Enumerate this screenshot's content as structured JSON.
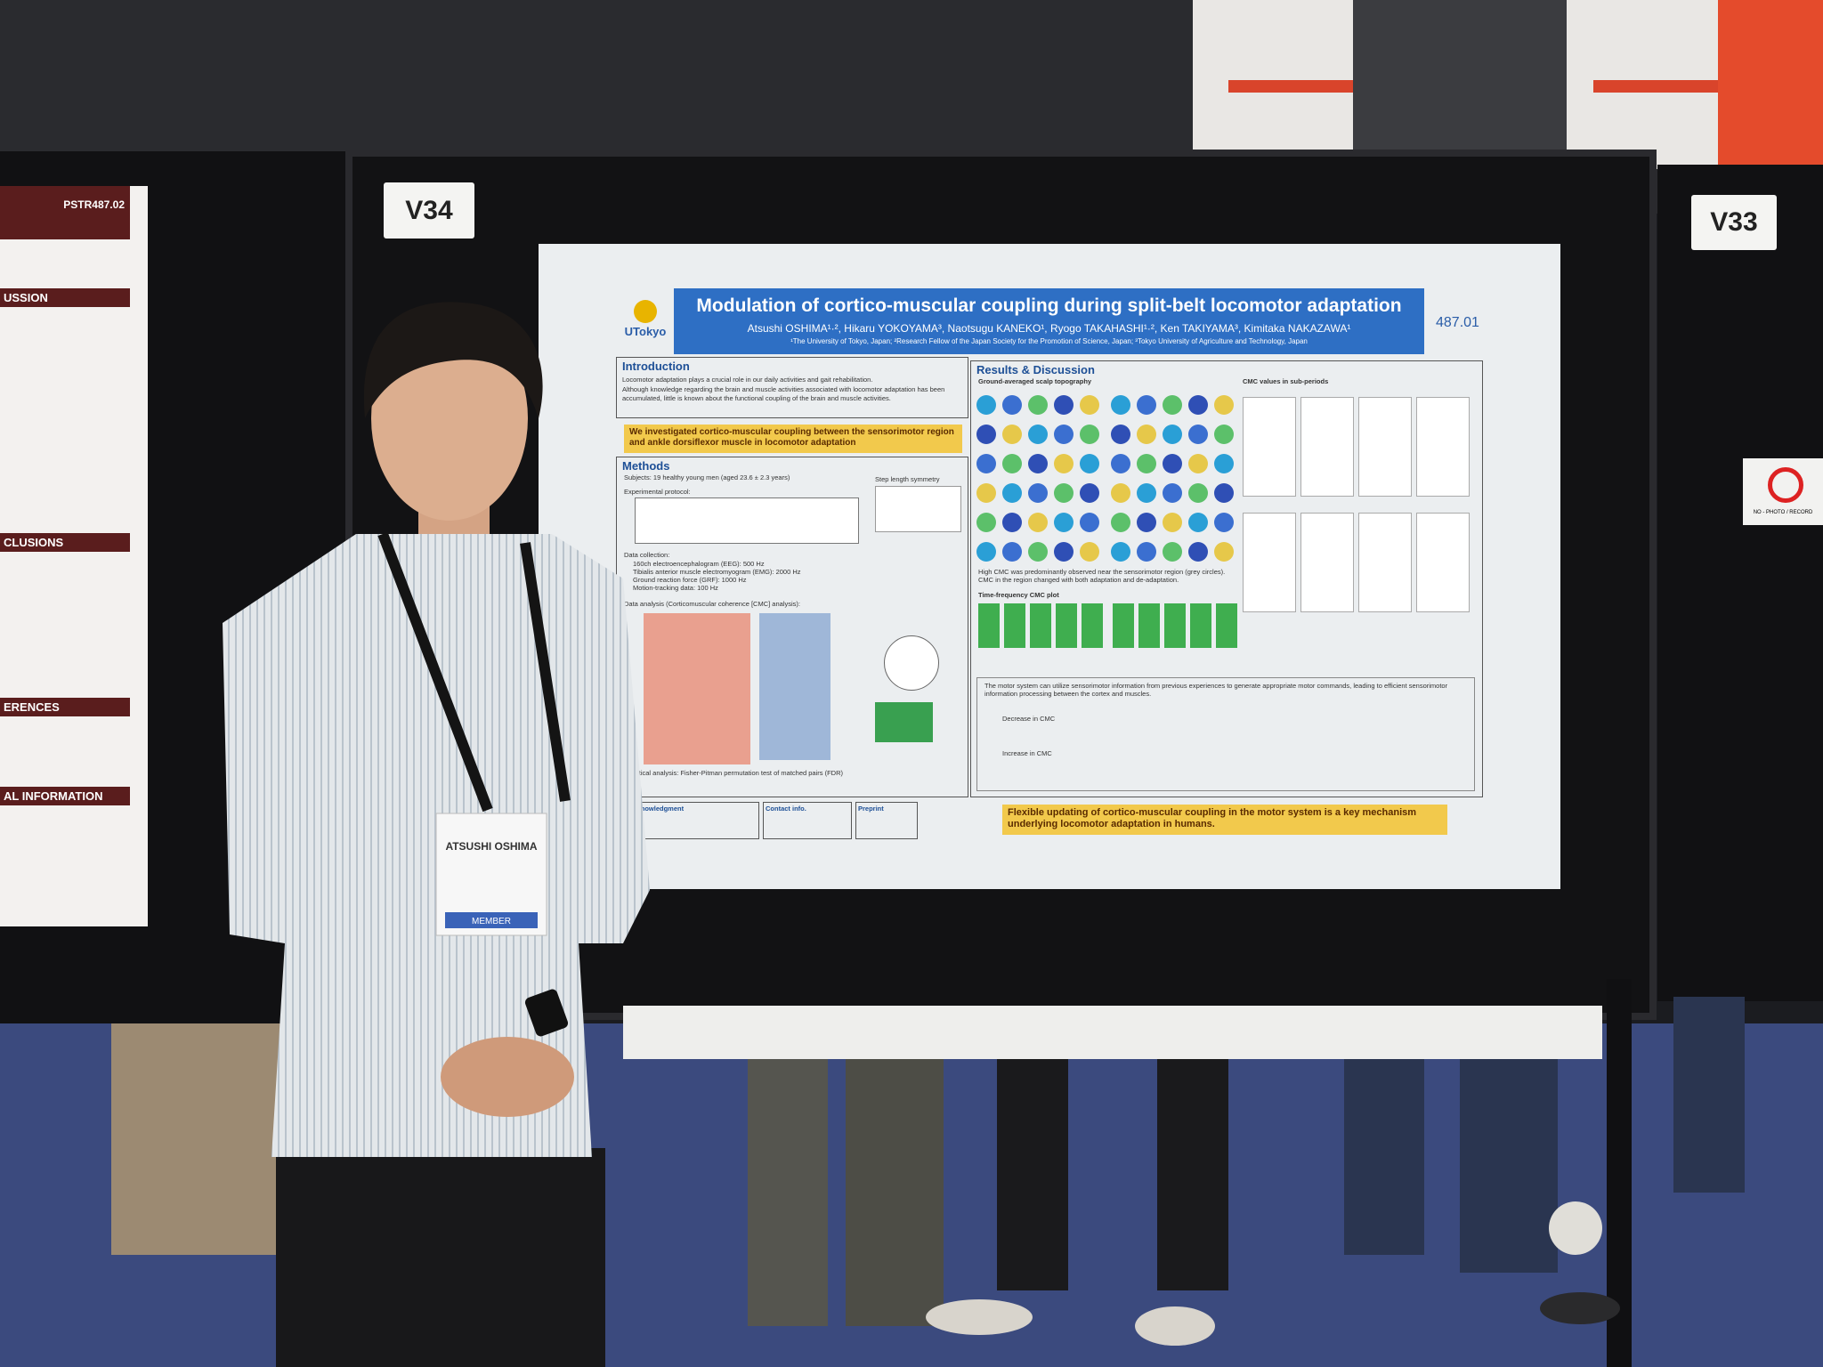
{
  "booth": {
    "left_label": "V34",
    "right_label": "V33",
    "left_poster_id": "PSTR487.02"
  },
  "left_poster": {
    "headings": [
      "USSION",
      "CLUSIONS",
      "ERENCES",
      "AL INFORMATION"
    ]
  },
  "poster": {
    "logo": "UTokyo",
    "number": "487.01",
    "title": "Modulation of cortico-muscular coupling during split-belt locomotor adaptation",
    "authors": "Atsushi OSHIMA¹·², Hikaru YOKOYAMA³, Naotsugu KANEKO¹, Ryogo TAKAHASHI¹·², Ken TAKIYAMA³, Kimitaka NAKAZAWA¹",
    "affiliations": "¹The University of Tokyo, Japan; ²Research Fellow of the Japan Society for the Promotion of Science, Japan; ³Tokyo University of Agriculture and Technology, Japan",
    "introduction": {
      "heading": "Introduction",
      "bullets": [
        "Locomotor adaptation plays a crucial role in our daily activities and gait rehabilitation.",
        "Although knowledge regarding the brain and muscle activities associated with locomotor adaptation has been accumulated, little is known about the functional coupling of the brain and muscle activities."
      ],
      "aim": "We investigated cortico-muscular coupling between the sensorimotor region and ankle dorsiflexor muscle in locomotor adaptation"
    },
    "methods": {
      "heading": "Methods",
      "items": [
        "Subjects: 19 healthy young men (aged 23.6 ± 2.3 years)",
        "Experimental protocol:",
        "Data collection:",
        "160ch electroencephalogram (EEG): 500 Hz",
        "Tibialis anterior muscle electromyogram (EMG): 2000 Hz",
        "Ground reaction force (GRF): 1000 Hz",
        "Motion-tracking data: 100 Hz",
        "Data analysis (Corticomuscular coherence [CMC] analysis):"
      ],
      "step_title": "Step length symmetry",
      "statistics": "Statistical analysis: Fisher-Pitman permutation test of matched pairs (FDR)"
    },
    "results": {
      "heading": "Results & Discussion",
      "topography": "Ground-averaged scalp topography",
      "cmc_values": "CMC values in sub-periods",
      "topography_note": "High CMC was predominantly observed near the sensorimotor region (grey circles). CMC in the region changed with both adaptation and de-adaptation.",
      "time_frequency": "Time-frequency CMC plot",
      "discussion": "The motor system can utilize sensorimotor information from previous experiences to generate appropriate motor commands, leading to efficient sensorimotor information processing between the cortex and muscles.",
      "decrease": "Decrease in CMC",
      "increase": "Increase in CMC"
    },
    "footer": {
      "acknowledgment": "Acknowledgment",
      "contact": "Contact info.",
      "preprint": "Preprint"
    },
    "conclusion": "Flexible updating of cortico-muscular coupling in the motor system is a key mechanism underlying locomotor adaptation in humans."
  },
  "badge": {
    "name": "ATSUSHI OSHIMA",
    "member": "MEMBER"
  },
  "sign": "NO - PHOTO / RECORD"
}
